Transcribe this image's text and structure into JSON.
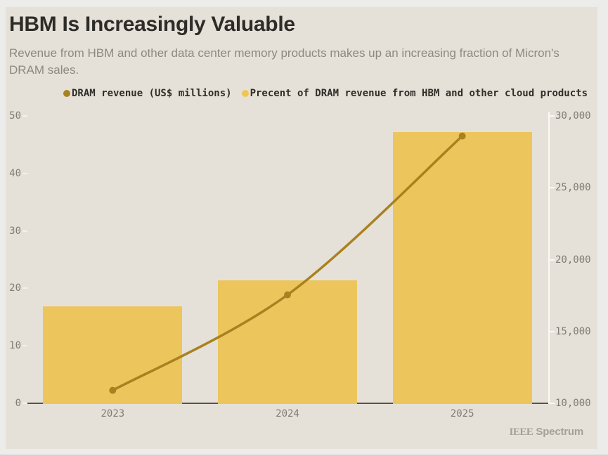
{
  "header": {
    "title": "HBM Is Increasingly Valuable",
    "subtitle": "Revenue from HBM and other data center memory products makes up an increasing fraction of Micron's DRAM sales."
  },
  "legend": {
    "items": [
      {
        "label": "DRAM revenue (US$ millions)",
        "color": "#a8821f",
        "series": "line"
      },
      {
        "label": "Precent of DRAM revenue from HBM and other cloud products",
        "color": "#efc653",
        "series": "bar"
      }
    ]
  },
  "chart_data": {
    "type": "bar+line",
    "categories": [
      "2023",
      "2024",
      "2025"
    ],
    "series": [
      {
        "name": "Precent of DRAM revenue from HBM and other cloud products",
        "type": "bar",
        "axis": "left",
        "color": "#ecc65d",
        "values": [
          16.9,
          21.4,
          47.2
        ]
      },
      {
        "name": "DRAM revenue (US$ millions)",
        "type": "line",
        "axis": "right",
        "color": "#a8821f",
        "values": [
          10900,
          17550,
          28600
        ]
      }
    ],
    "left_axis": {
      "min": 0,
      "max": 50,
      "ticks": [
        {
          "value": 0,
          "label": "0"
        },
        {
          "value": 10,
          "label": "10"
        },
        {
          "value": 20,
          "label": "20"
        },
        {
          "value": 30,
          "label": "30"
        },
        {
          "value": 40,
          "label": "40"
        },
        {
          "value": 50,
          "label": "50"
        }
      ]
    },
    "right_axis": {
      "min": 10000,
      "max": 30000,
      "ticks": [
        {
          "value": 10000,
          "label": "10,000"
        },
        {
          "value": 15000,
          "label": "15,000"
        },
        {
          "value": 20000,
          "label": "20,000"
        },
        {
          "value": 25000,
          "label": "25,000"
        },
        {
          "value": 30000,
          "label": "30,000"
        }
      ]
    },
    "grid": false,
    "legend_position": "top"
  },
  "footer": {
    "logo_ieee": "IEEE",
    "logo_name": "Spectrum"
  },
  "colors": {
    "card_background": "#e6e1d8",
    "page_background": "#ececea",
    "bar_fill": "#ecc65d",
    "line_stroke": "#a8821f",
    "baseline": "#56534d",
    "axis_tick_text": "#7f7b75",
    "title_text": "#2d2c29",
    "subtitle_text": "#8d8880"
  }
}
